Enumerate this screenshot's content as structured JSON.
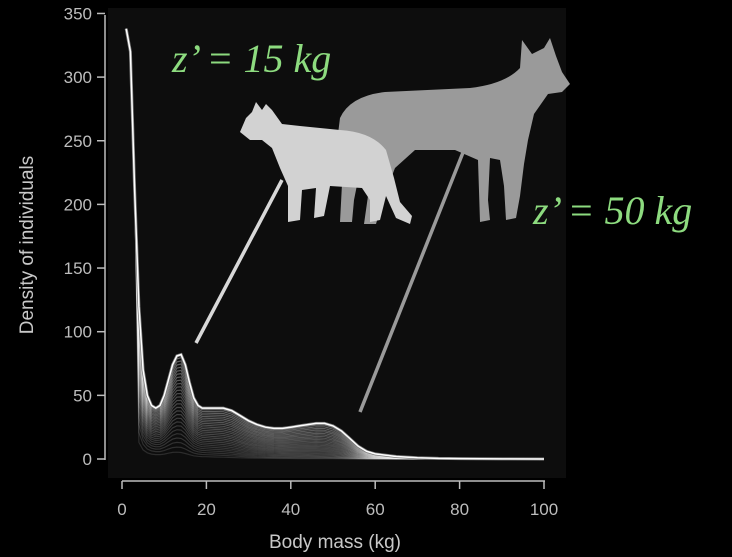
{
  "chart_data": {
    "type": "line",
    "title": "",
    "xlabel": "Body mass (kg)",
    "ylabel": "Density of individuals",
    "xlim": [
      0,
      105
    ],
    "ylim": [
      -5,
      355
    ],
    "x_ticks": [
      0,
      20,
      40,
      60,
      80,
      100
    ],
    "y_ticks": [
      0,
      50,
      100,
      150,
      200,
      250,
      300,
      350
    ],
    "grid": false,
    "legend": "none",
    "series": [
      {
        "x": [
          1,
          2,
          3,
          4,
          5,
          6,
          7,
          8,
          9,
          10,
          11,
          12,
          13,
          14,
          15,
          16,
          17,
          18,
          19,
          20,
          22,
          24,
          26,
          28,
          30,
          32,
          34,
          36,
          38,
          40,
          42,
          44,
          46,
          48,
          50,
          52,
          54,
          56,
          58,
          60,
          65,
          70,
          75,
          80,
          90,
          100
        ],
        "values": [
          338,
          320,
          210,
          120,
          70,
          50,
          42,
          40,
          42,
          50,
          62,
          74,
          81,
          82,
          74,
          60,
          48,
          42,
          40,
          40,
          40,
          40,
          38,
          34,
          30,
          27,
          25,
          24,
          24,
          25,
          26,
          27,
          28,
          28,
          26,
          22,
          16,
          10,
          6,
          4,
          2,
          1,
          0.5,
          0.3,
          0.1,
          0
        ]
      }
    ],
    "annotations": [
      {
        "text": "z’ = 15 kg",
        "points_to_x": 15
      },
      {
        "text": "z’ = 50 kg",
        "points_to_x": 50
      }
    ],
    "background_color": "#0d0d0d",
    "line_color": "#ffffff",
    "annotation_color": "#8ddb7f"
  }
}
